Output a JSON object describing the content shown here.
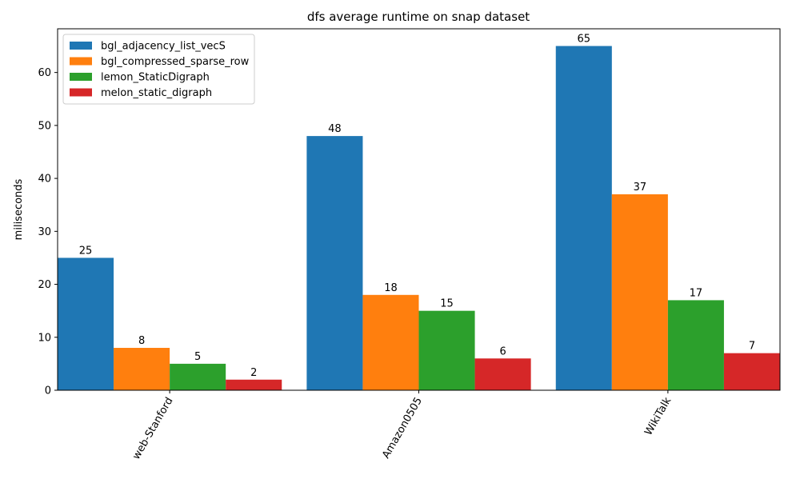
{
  "chart_data": {
    "type": "bar",
    "title": "dfs average runtime on snap dataset",
    "xlabel": "",
    "ylabel": "miliseconds",
    "categories": [
      "web-Stanford",
      "Amazon0505",
      "WikiTalk"
    ],
    "series": [
      {
        "name": "bgl_adjacency_list_vecS",
        "color": "#1f77b4",
        "values": [
          25,
          48,
          65
        ]
      },
      {
        "name": "bgl_compressed_sparse_row",
        "color": "#ff7f0e",
        "values": [
          8,
          18,
          37
        ]
      },
      {
        "name": "lemon_StaticDigraph",
        "color": "#2ca02c",
        "values": [
          5,
          15,
          17
        ]
      },
      {
        "name": "melon_static_digraph",
        "color": "#d62728",
        "values": [
          2,
          6,
          7
        ]
      }
    ],
    "ylim": [
      0,
      68.25
    ],
    "yticks": [
      0,
      10,
      20,
      30,
      40,
      50,
      60
    ],
    "legend_position": "top-left",
    "grid": false,
    "xtick_rotation": 60
  }
}
